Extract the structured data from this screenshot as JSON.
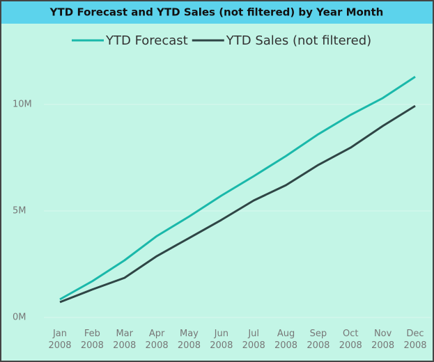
{
  "chart_data": {
    "type": "line",
    "title": "YTD Forecast and YTD Sales (not filtered) by Year Month",
    "categories": [
      "Jan 2008",
      "Feb 2008",
      "Mar 2008",
      "Apr 2008",
      "May 2008",
      "Jun 2008",
      "Jul 2008",
      "Aug 2008",
      "Sep 2008",
      "Oct 2008",
      "Nov 2008",
      "Dec 2008"
    ],
    "series": [
      {
        "name": "YTD Forecast",
        "color": "#1ab8aa",
        "values": [
          850000,
          1700000,
          2680000,
          3820000,
          4740000,
          5720000,
          6630000,
          7580000,
          8600000,
          9510000,
          10300000,
          11300000
        ]
      },
      {
        "name": "YTD Sales (not filtered)",
        "color": "#2f4545",
        "values": [
          720000,
          1310000,
          1860000,
          2880000,
          3730000,
          4580000,
          5490000,
          6210000,
          7160000,
          7970000,
          8990000,
          9930000
        ]
      }
    ],
    "ylim": [
      0,
      12000000
    ],
    "yticks": [
      {
        "value": 0,
        "label": "0M"
      },
      {
        "value": 5000000,
        "label": "5M"
      },
      {
        "value": 10000000,
        "label": "10M"
      }
    ],
    "grid": true
  }
}
